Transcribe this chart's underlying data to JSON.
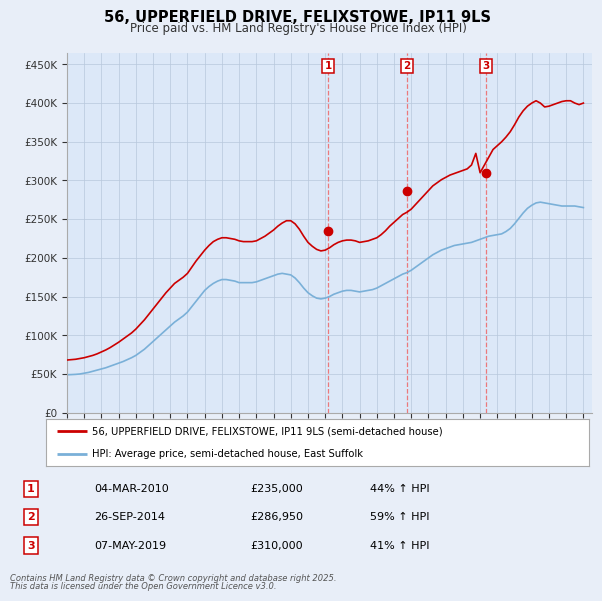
{
  "title": "56, UPPERFIELD DRIVE, FELIXSTOWE, IP11 9LS",
  "subtitle": "Price paid vs. HM Land Registry's House Price Index (HPI)",
  "ylabel_ticks": [
    "£0",
    "£50K",
    "£100K",
    "£150K",
    "£200K",
    "£250K",
    "£300K",
    "£350K",
    "£400K",
    "£450K"
  ],
  "ytick_values": [
    0,
    50000,
    100000,
    150000,
    200000,
    250000,
    300000,
    350000,
    400000,
    450000
  ],
  "ylim": [
    0,
    465000
  ],
  "xlim_start": 1995.0,
  "xlim_end": 2025.5,
  "background_color": "#e8eef8",
  "plot_bg_color": "#dce8f8",
  "grid_color": "#b8c8dc",
  "red_line_color": "#cc0000",
  "blue_line_color": "#7ab0d8",
  "purchase_marker_color": "#cc0000",
  "dashed_line_color": "#ee6666",
  "legend_label_red": "56, UPPERFIELD DRIVE, FELIXSTOWE, IP11 9LS (semi-detached house)",
  "legend_label_blue": "HPI: Average price, semi-detached house, East Suffolk",
  "transaction1_date": "04-MAR-2010",
  "transaction1_price": "£235,000",
  "transaction1_pct": "44% ↑ HPI",
  "transaction1_x": 2010.17,
  "transaction1_y": 235000,
  "transaction2_date": "26-SEP-2014",
  "transaction2_price": "£286,950",
  "transaction2_pct": "59% ↑ HPI",
  "transaction2_x": 2014.73,
  "transaction2_y": 286950,
  "transaction3_date": "07-MAY-2019",
  "transaction3_price": "£310,000",
  "transaction3_pct": "41% ↑ HPI",
  "transaction3_x": 2019.35,
  "transaction3_y": 310000,
  "footer_line1": "Contains HM Land Registry data © Crown copyright and database right 2025.",
  "footer_line2": "This data is licensed under the Open Government Licence v3.0.",
  "hpi_blue_data_x": [
    1995.0,
    1995.25,
    1995.5,
    1995.75,
    1996.0,
    1996.25,
    1996.5,
    1996.75,
    1997.0,
    1997.25,
    1997.5,
    1997.75,
    1998.0,
    1998.25,
    1998.5,
    1998.75,
    1999.0,
    1999.25,
    1999.5,
    1999.75,
    2000.0,
    2000.25,
    2000.5,
    2000.75,
    2001.0,
    2001.25,
    2001.5,
    2001.75,
    2002.0,
    2002.25,
    2002.5,
    2002.75,
    2003.0,
    2003.25,
    2003.5,
    2003.75,
    2004.0,
    2004.25,
    2004.5,
    2004.75,
    2005.0,
    2005.25,
    2005.5,
    2005.75,
    2006.0,
    2006.25,
    2006.5,
    2006.75,
    2007.0,
    2007.25,
    2007.5,
    2007.75,
    2008.0,
    2008.25,
    2008.5,
    2008.75,
    2009.0,
    2009.25,
    2009.5,
    2009.75,
    2010.0,
    2010.25,
    2010.5,
    2010.75,
    2011.0,
    2011.25,
    2011.5,
    2011.75,
    2012.0,
    2012.25,
    2012.5,
    2012.75,
    2013.0,
    2013.25,
    2013.5,
    2013.75,
    2014.0,
    2014.25,
    2014.5,
    2014.75,
    2015.0,
    2015.25,
    2015.5,
    2015.75,
    2016.0,
    2016.25,
    2016.5,
    2016.75,
    2017.0,
    2017.25,
    2017.5,
    2017.75,
    2018.0,
    2018.25,
    2018.5,
    2018.75,
    2019.0,
    2019.25,
    2019.5,
    2019.75,
    2020.0,
    2020.25,
    2020.5,
    2020.75,
    2021.0,
    2021.25,
    2021.5,
    2021.75,
    2022.0,
    2022.25,
    2022.5,
    2022.75,
    2023.0,
    2023.25,
    2023.5,
    2023.75,
    2024.0,
    2024.25,
    2024.5,
    2024.75,
    2025.0
  ],
  "hpi_blue_data_y": [
    49000,
    49200,
    49500,
    50000,
    51000,
    52000,
    53500,
    55000,
    56500,
    58000,
    60000,
    62000,
    64000,
    66000,
    68500,
    71000,
    74000,
    78000,
    82000,
    87000,
    92000,
    97000,
    102000,
    107000,
    112000,
    117000,
    121000,
    125000,
    130000,
    137000,
    144000,
    151000,
    158000,
    163000,
    167000,
    170000,
    172000,
    172000,
    171000,
    170000,
    168000,
    168000,
    168000,
    168000,
    169000,
    171000,
    173000,
    175000,
    177000,
    179000,
    180000,
    179000,
    178000,
    174000,
    168000,
    161000,
    155000,
    151000,
    148000,
    147000,
    148000,
    150000,
    153000,
    155000,
    157000,
    158000,
    158000,
    157000,
    156000,
    157000,
    158000,
    159000,
    161000,
    164000,
    167000,
    170000,
    173000,
    176000,
    179000,
    181000,
    184000,
    188000,
    192000,
    196000,
    200000,
    204000,
    207000,
    210000,
    212000,
    214000,
    216000,
    217000,
    218000,
    219000,
    220000,
    222000,
    224000,
    226000,
    228000,
    229000,
    230000,
    231000,
    234000,
    238000,
    244000,
    251000,
    258000,
    264000,
    268000,
    271000,
    272000,
    271000,
    270000,
    269000,
    268000,
    267000,
    267000,
    267000,
    267000,
    266000,
    265000
  ],
  "red_hpi_data_x": [
    1995.0,
    1995.25,
    1995.5,
    1995.75,
    1996.0,
    1996.25,
    1996.5,
    1996.75,
    1997.0,
    1997.25,
    1997.5,
    1997.75,
    1998.0,
    1998.25,
    1998.5,
    1998.75,
    1999.0,
    1999.25,
    1999.5,
    1999.75,
    2000.0,
    2000.25,
    2000.5,
    2000.75,
    2001.0,
    2001.25,
    2001.5,
    2001.75,
    2002.0,
    2002.25,
    2002.5,
    2002.75,
    2003.0,
    2003.25,
    2003.5,
    2003.75,
    2004.0,
    2004.25,
    2004.5,
    2004.75,
    2005.0,
    2005.25,
    2005.5,
    2005.75,
    2006.0,
    2006.25,
    2006.5,
    2006.75,
    2007.0,
    2007.25,
    2007.5,
    2007.75,
    2008.0,
    2008.25,
    2008.5,
    2008.75,
    2009.0,
    2009.25,
    2009.5,
    2009.75,
    2010.0,
    2010.25,
    2010.5,
    2010.75,
    2011.0,
    2011.25,
    2011.5,
    2011.75,
    2012.0,
    2012.25,
    2012.5,
    2012.75,
    2013.0,
    2013.25,
    2013.5,
    2013.75,
    2014.0,
    2014.25,
    2014.5,
    2014.75,
    2015.0,
    2015.25,
    2015.5,
    2015.75,
    2016.0,
    2016.25,
    2016.5,
    2016.75,
    2017.0,
    2017.25,
    2017.5,
    2017.75,
    2018.0,
    2018.25,
    2018.5,
    2018.75,
    2019.0,
    2019.25,
    2019.5,
    2019.75,
    2020.0,
    2020.25,
    2020.5,
    2020.75,
    2021.0,
    2021.25,
    2021.5,
    2021.75,
    2022.0,
    2022.25,
    2022.5,
    2022.75,
    2023.0,
    2023.25,
    2023.5,
    2023.75,
    2024.0,
    2024.25,
    2024.5,
    2024.75,
    2025.0
  ],
  "red_hpi_data_y": [
    68000,
    68500,
    69000,
    70000,
    71000,
    72500,
    74000,
    76000,
    78500,
    81000,
    84000,
    87500,
    91000,
    95000,
    99000,
    103000,
    108000,
    114000,
    120000,
    127000,
    134000,
    141000,
    148000,
    155000,
    161000,
    167000,
    171000,
    175000,
    180000,
    188000,
    196000,
    203000,
    210000,
    216000,
    221000,
    224000,
    226000,
    226000,
    225000,
    224000,
    222000,
    221000,
    221000,
    221000,
    222000,
    225000,
    228000,
    232000,
    236000,
    241000,
    245000,
    248000,
    248000,
    244000,
    237000,
    228000,
    220000,
    215000,
    211000,
    209000,
    210000,
    213000,
    217000,
    220000,
    222000,
    223000,
    223000,
    222000,
    220000,
    221000,
    222000,
    224000,
    226000,
    230000,
    235000,
    241000,
    246000,
    251000,
    256000,
    259000,
    263000,
    269000,
    275000,
    281000,
    287000,
    293000,
    297000,
    301000,
    304000,
    307000,
    309000,
    311000,
    313000,
    315000,
    320000,
    335000,
    310000,
    320000,
    330000,
    340000,
    345000,
    350000,
    356000,
    363000,
    372000,
    382000,
    390000,
    396000,
    400000,
    403000,
    400000,
    395000,
    396000,
    398000,
    400000,
    402000,
    403000,
    403000,
    400000,
    398000,
    400000
  ]
}
